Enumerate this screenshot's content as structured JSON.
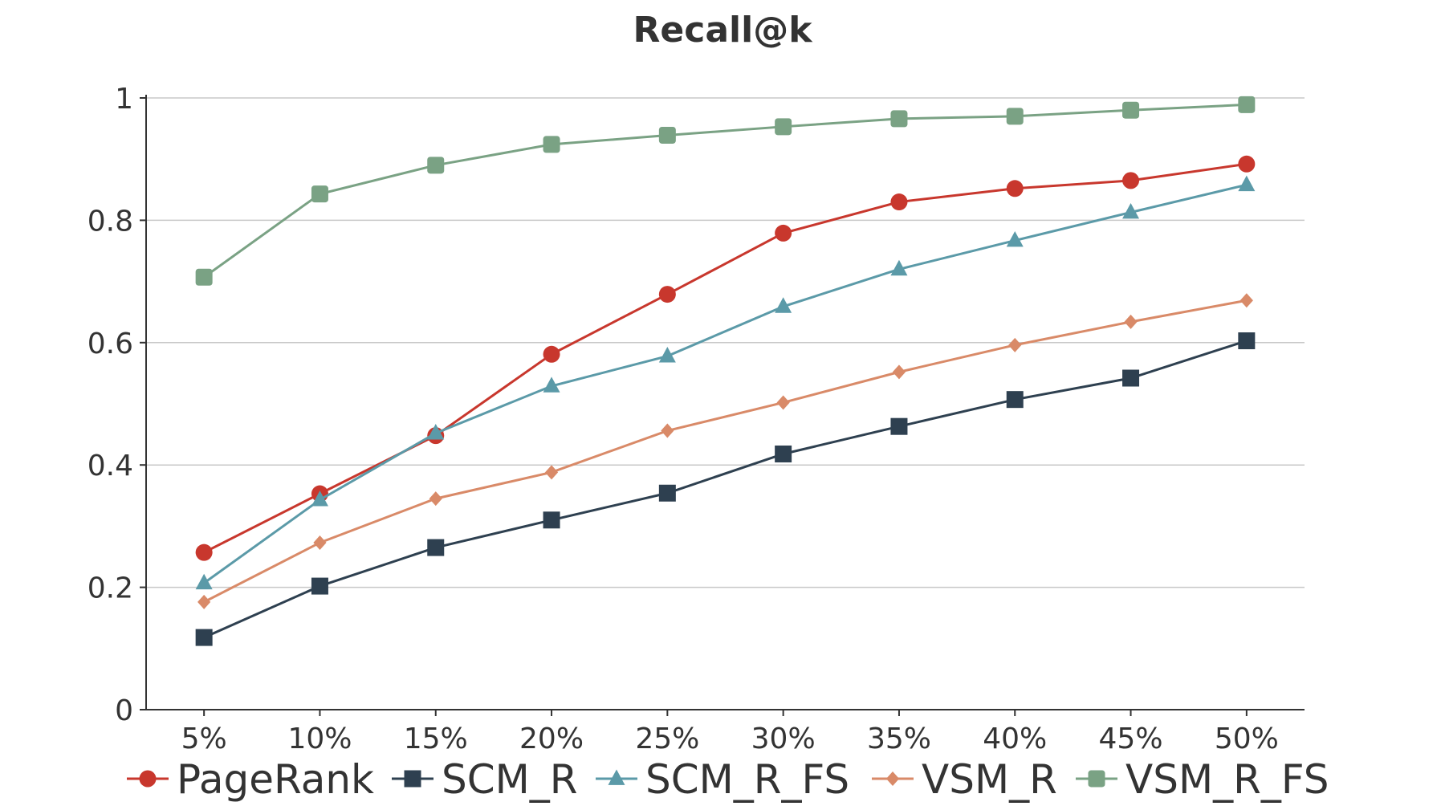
{
  "chart_data": {
    "type": "line",
    "title": "Recall@k",
    "xlabel": "",
    "ylabel": "",
    "categories": [
      "5%",
      "10%",
      "15%",
      "20%",
      "25%",
      "30%",
      "35%",
      "40%",
      "45%",
      "50%"
    ],
    "ylim": [
      0,
      1
    ],
    "yticks": [
      "0",
      "0.2",
      "0.4",
      "0.6",
      "0.8",
      "1"
    ],
    "grid": "horizontal",
    "legend_position": "bottom",
    "series": [
      {
        "name": "PageRank",
        "color": "#c8372d",
        "marker": "circle",
        "values": [
          0.257,
          0.353,
          0.448,
          0.581,
          0.679,
          0.779,
          0.83,
          0.852,
          0.865,
          0.892
        ]
      },
      {
        "name": "SCM_R",
        "color": "#2e4050",
        "marker": "square",
        "values": [
          0.118,
          0.202,
          0.265,
          0.31,
          0.354,
          0.418,
          0.463,
          0.507,
          0.542,
          0.603
        ]
      },
      {
        "name": "SCM_R_FS",
        "color": "#5b9aa8",
        "marker": "triangle",
        "values": [
          0.207,
          0.343,
          0.452,
          0.529,
          0.578,
          0.659,
          0.72,
          0.767,
          0.813,
          0.858
        ]
      },
      {
        "name": "VSM_R",
        "color": "#d98a68",
        "marker": "diamond",
        "values": [
          0.176,
          0.273,
          0.345,
          0.388,
          0.456,
          0.502,
          0.552,
          0.596,
          0.634,
          0.669
        ]
      },
      {
        "name": "VSM_R_FS",
        "color": "#7aa284",
        "marker": "rounded-square",
        "values": [
          0.707,
          0.843,
          0.89,
          0.924,
          0.939,
          0.953,
          0.966,
          0.97,
          0.98,
          0.989
        ]
      }
    ]
  }
}
